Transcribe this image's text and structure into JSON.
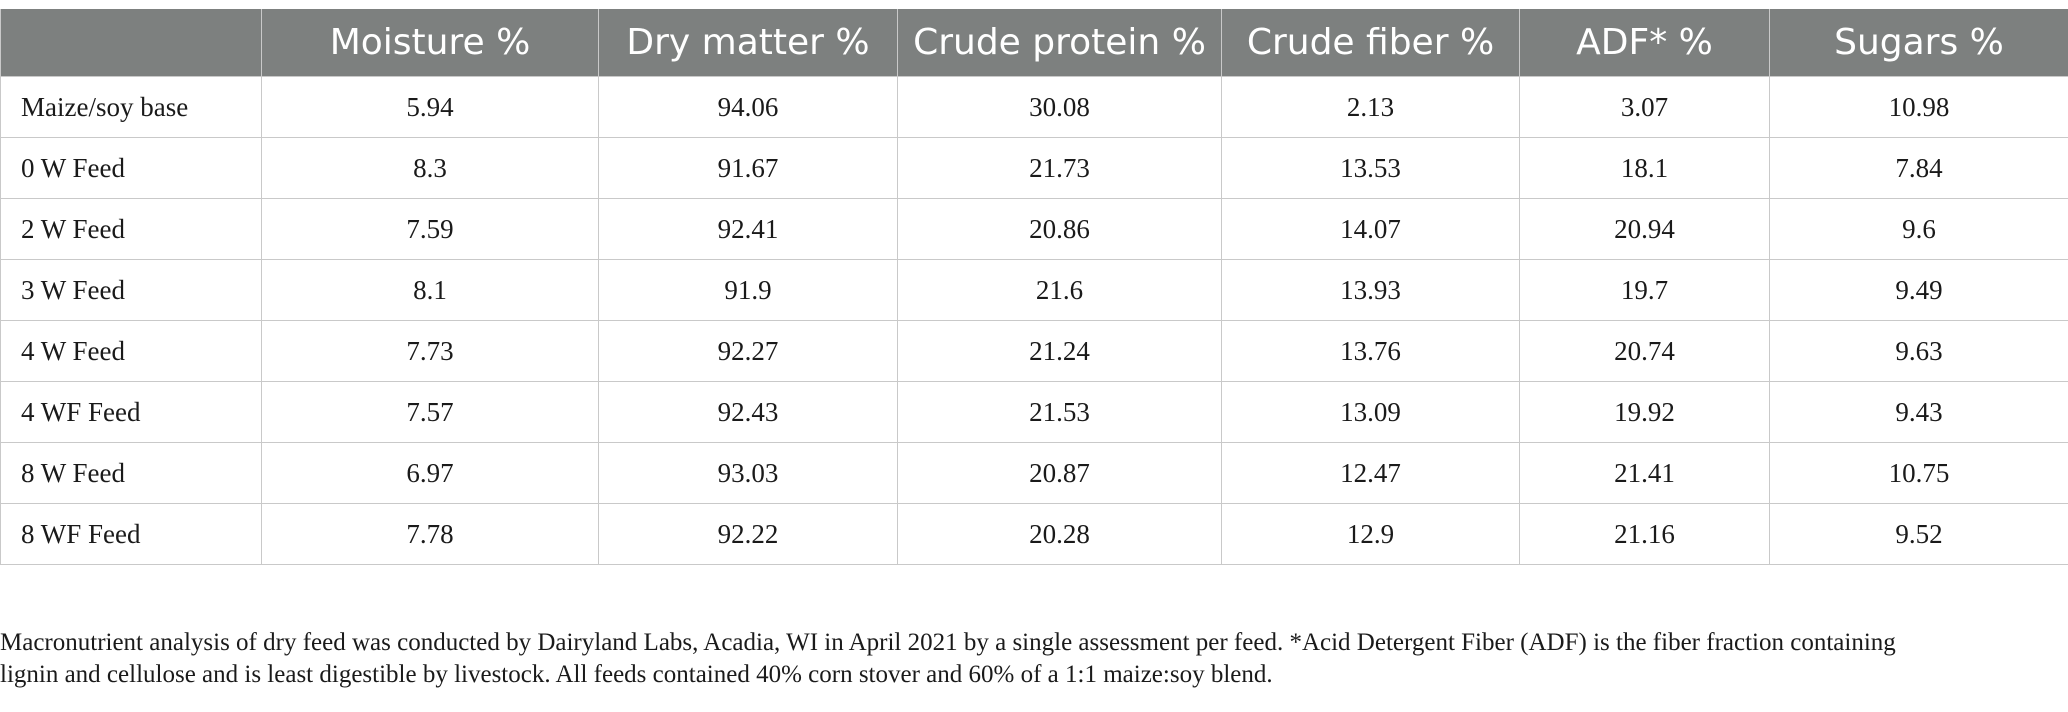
{
  "table": {
    "columns": [
      "",
      "Moisture %",
      "Dry matter %",
      "Crude protein %",
      "Crude fiber %",
      "ADF* %",
      "Sugars %"
    ],
    "rows": [
      {
        "label": "Maize/soy base",
        "values": [
          "5.94",
          "94.06",
          "30.08",
          "2.13",
          "3.07",
          "10.98"
        ]
      },
      {
        "label": "0 W Feed",
        "values": [
          "8.3",
          "91.67",
          "21.73",
          "13.53",
          "18.1",
          "7.84"
        ]
      },
      {
        "label": "2 W Feed",
        "values": [
          "7.59",
          "92.41",
          "20.86",
          "14.07",
          "20.94",
          "9.6"
        ]
      },
      {
        "label": "3 W Feed",
        "values": [
          "8.1",
          "91.9",
          "21.6",
          "13.93",
          "19.7",
          "9.49"
        ]
      },
      {
        "label": "4 W Feed",
        "values": [
          "7.73",
          "92.27",
          "21.24",
          "13.76",
          "20.74",
          "9.63"
        ]
      },
      {
        "label": "4 WF Feed",
        "values": [
          "7.57",
          "92.43",
          "21.53",
          "13.09",
          "19.92",
          "9.43"
        ]
      },
      {
        "label": "8 W Feed",
        "values": [
          "6.97",
          "93.03",
          "20.87",
          "12.47",
          "21.41",
          "10.75"
        ]
      },
      {
        "label": "8 WF Feed",
        "values": [
          "7.78",
          "92.22",
          "20.28",
          "12.9",
          "21.16",
          "9.52"
        ]
      }
    ]
  },
  "footnote": {
    "line1": "Macronutrient analysis of dry feed was conducted by Dairyland Labs, Acadia, WI in April 2021 by a single assessment per feed. *Acid Detergent Fiber (ADF) is the fiber fraction containing",
    "line2": "lignin and cellulose and is least digestible by livestock. All feeds contained 40% corn stover and 60% of a 1:1 maize:soy blend."
  },
  "colors": {
    "header_bg": "#7d807f",
    "header_text": "#ffffff",
    "grid": "#c9c9c9"
  }
}
